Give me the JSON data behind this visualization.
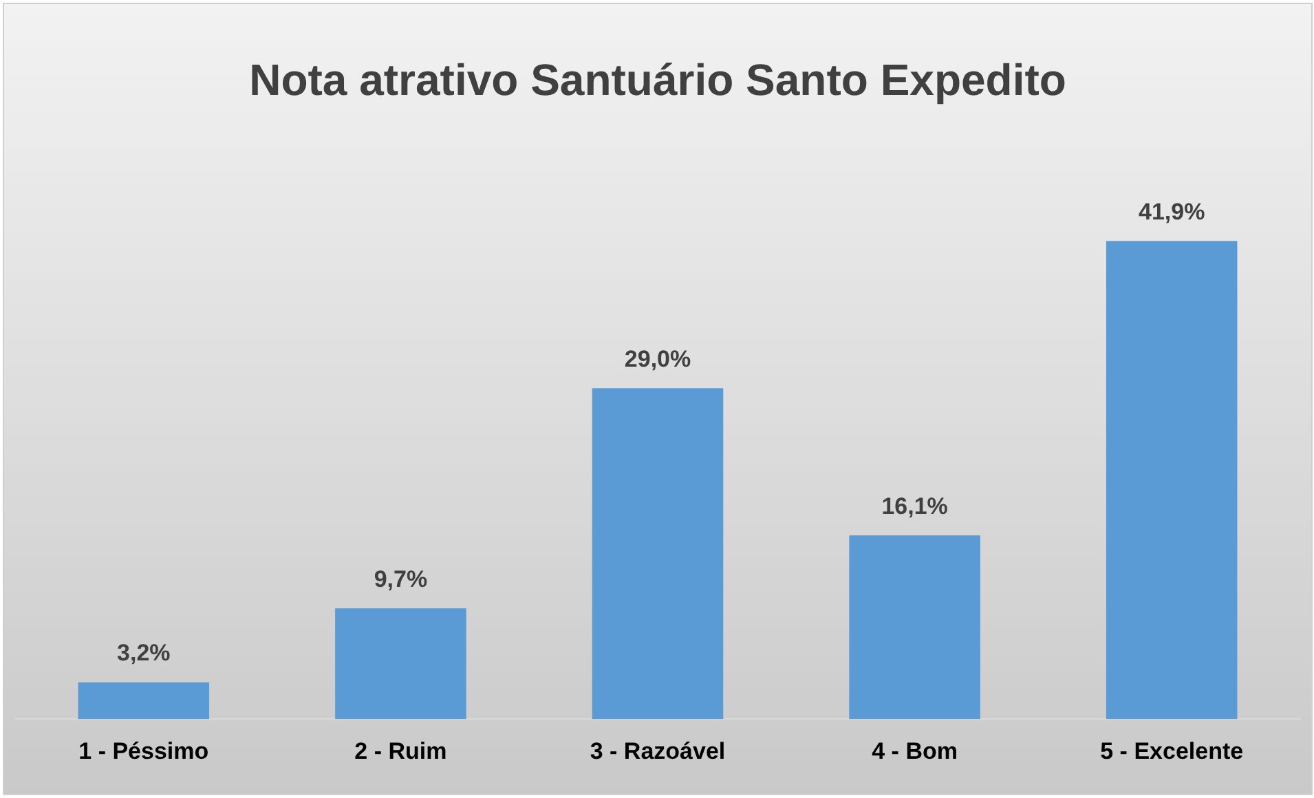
{
  "chart_data": {
    "type": "bar",
    "title": "Nota atrativo Santuário Santo Expedito",
    "categories": [
      "1 - Péssimo",
      "2 - Ruim",
      "3 - Razoável",
      "4 - Bom",
      "5 - Excelente"
    ],
    "values": [
      3.2,
      9.7,
      29.0,
      16.1,
      41.9
    ],
    "value_labels": [
      "3,2%",
      "9,7%",
      "29,0%",
      "16,1%",
      "41,9%"
    ],
    "color": "#5b9bd5",
    "grid": false,
    "legend": false
  }
}
